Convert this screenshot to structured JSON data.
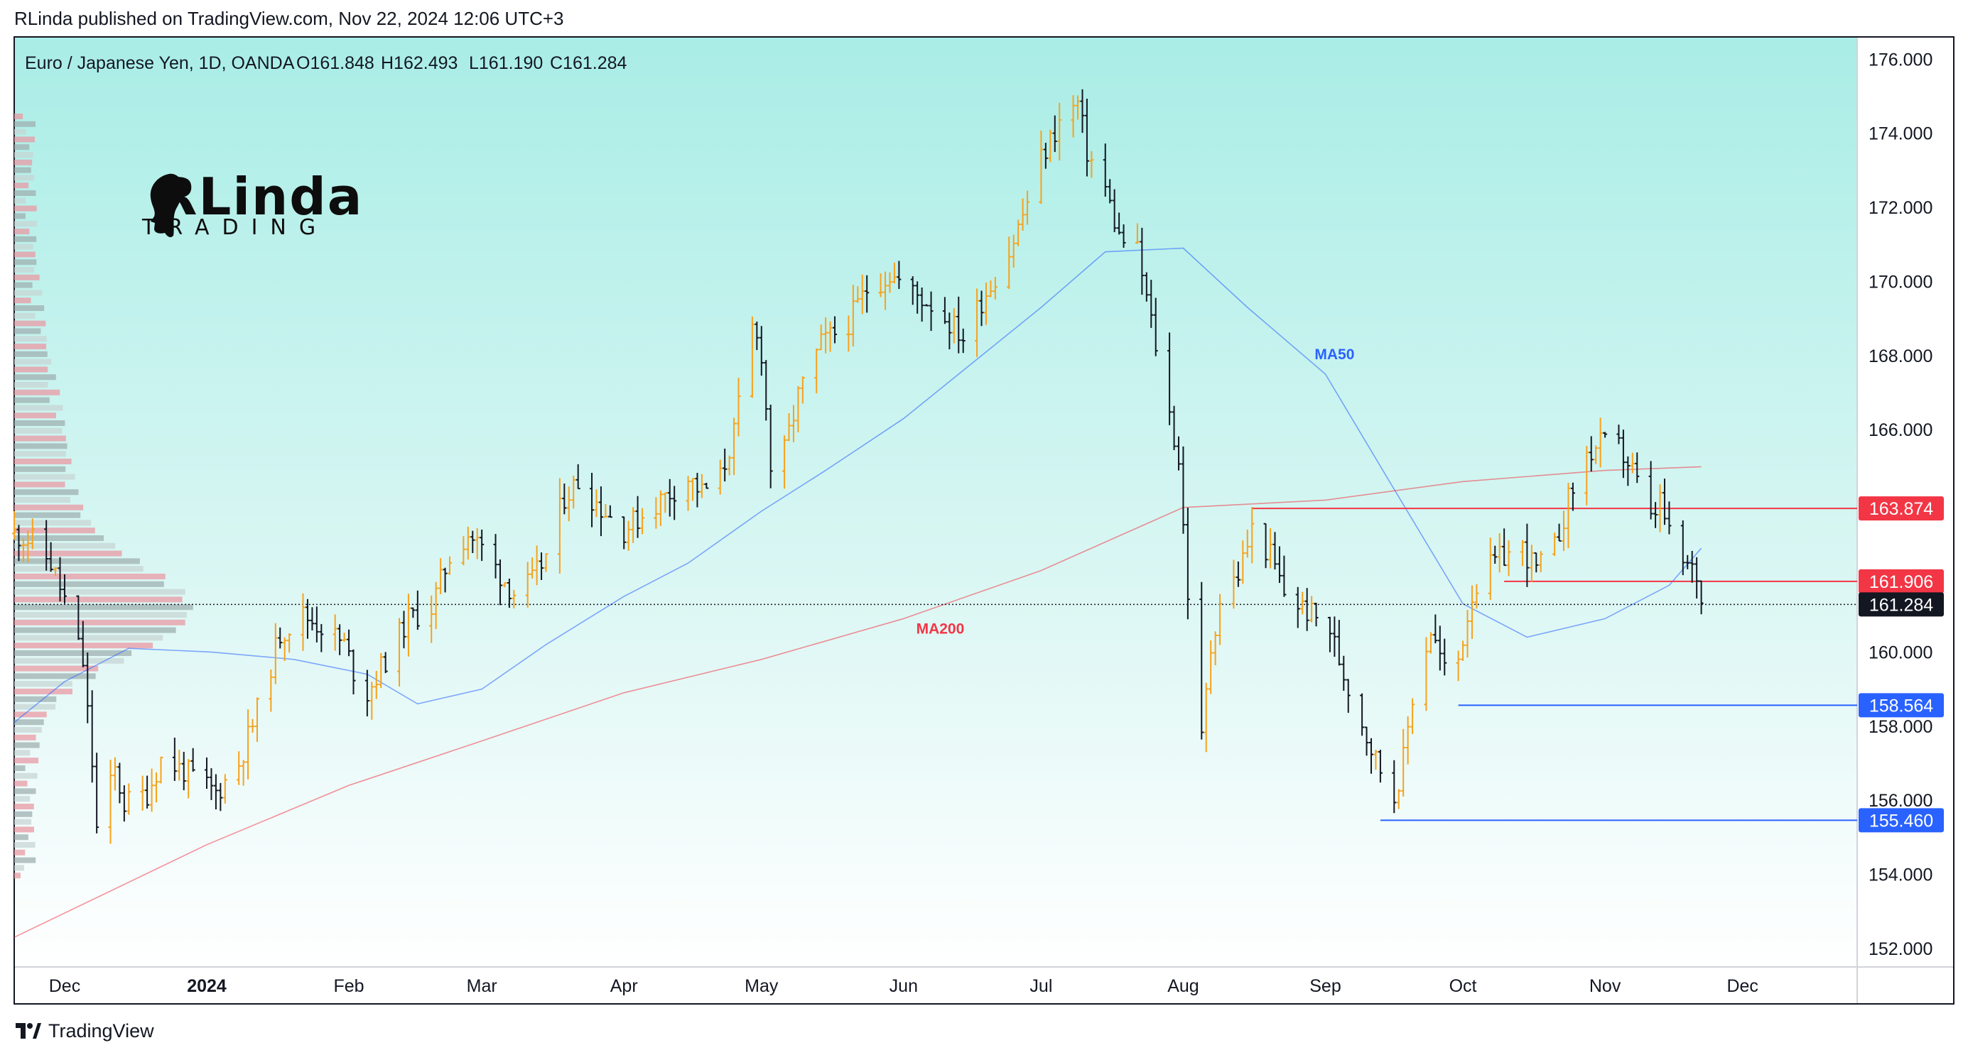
{
  "header": {
    "published_text": "RLinda published on TradingView.com, Nov 22, 2024 12:06 UTC+3"
  },
  "footer": {
    "brand": "TradingView"
  },
  "chart_data": {
    "type": "ohlc",
    "legend": {
      "symbol": "Euro / Japanese Yen, 1D, OANDA",
      "open": "O161.848",
      "high": "H162.493",
      "low": "L161.190",
      "close": "C161.284"
    },
    "watermark": {
      "top": "RLinda",
      "bottom": "TRADING"
    },
    "y_axis": {
      "min": 151.5,
      "max": 176.6,
      "ticks": [
        "176.000",
        "174.000",
        "172.000",
        "170.000",
        "168.000",
        "166.000",
        "164.000",
        "162.000",
        "160.000",
        "158.000",
        "156.000",
        "154.000",
        "152.000"
      ]
    },
    "x_axis": {
      "start_date": "2023-11-20",
      "end_date": "2024-12-26",
      "labels": [
        {
          "date": "2023-12-01",
          "text": "Dec",
          "bold": false
        },
        {
          "date": "2024-01-01",
          "text": "2024",
          "bold": true
        },
        {
          "date": "2024-02-01",
          "text": "Feb",
          "bold": false
        },
        {
          "date": "2024-03-01",
          "text": "Mar",
          "bold": false
        },
        {
          "date": "2024-04-01",
          "text": "Apr",
          "bold": false
        },
        {
          "date": "2024-05-01",
          "text": "May",
          "bold": false
        },
        {
          "date": "2024-06-01",
          "text": "Jun",
          "bold": false
        },
        {
          "date": "2024-07-01",
          "text": "Jul",
          "bold": false
        },
        {
          "date": "2024-08-01",
          "text": "Aug",
          "bold": false
        },
        {
          "date": "2024-09-01",
          "text": "Sep",
          "bold": false
        },
        {
          "date": "2024-10-01",
          "text": "Oct",
          "bold": false
        },
        {
          "date": "2024-11-01",
          "text": "Nov",
          "bold": false
        },
        {
          "date": "2024-12-01",
          "text": "Dec",
          "bold": false
        }
      ]
    },
    "price_path": [
      [
        "2023-11-20",
        163.2
      ],
      [
        "2023-11-24",
        163.0
      ],
      [
        "2023-11-28",
        162.4
      ],
      [
        "2023-12-01",
        161.4
      ],
      [
        "2023-12-05",
        159.7
      ],
      [
        "2023-12-07",
        157.0
      ],
      [
        "2023-12-08",
        155.2
      ],
      [
        "2023-12-12",
        156.8
      ],
      [
        "2023-12-14",
        155.9
      ],
      [
        "2023-12-19",
        156.2
      ],
      [
        "2023-12-22",
        157.1
      ],
      [
        "2023-12-27",
        156.8
      ],
      [
        "2024-01-03",
        156.2
      ],
      [
        "2024-01-08",
        157.0
      ],
      [
        "2024-01-12",
        158.4
      ],
      [
        "2024-01-17",
        160.5
      ],
      [
        "2024-01-22",
        161.0
      ],
      [
        "2024-01-26",
        160.7
      ],
      [
        "2024-01-31",
        160.2
      ],
      [
        "2024-02-02",
        159.5
      ],
      [
        "2024-02-05",
        158.9
      ],
      [
        "2024-02-09",
        159.8
      ],
      [
        "2024-02-14",
        160.9
      ],
      [
        "2024-02-19",
        161.2
      ],
      [
        "2024-02-23",
        162.6
      ],
      [
        "2024-02-27",
        163.2
      ],
      [
        "2024-03-01",
        162.8
      ],
      [
        "2024-03-05",
        162.1
      ],
      [
        "2024-03-08",
        161.6
      ],
      [
        "2024-03-12",
        161.9
      ],
      [
        "2024-03-15",
        162.6
      ],
      [
        "2024-03-19",
        164.2
      ],
      [
        "2024-03-22",
        164.6
      ],
      [
        "2024-03-27",
        163.9
      ],
      [
        "2024-04-01",
        163.3
      ],
      [
        "2024-04-05",
        163.7
      ],
      [
        "2024-04-10",
        164.2
      ],
      [
        "2024-04-15",
        164.7
      ],
      [
        "2024-04-18",
        164.3
      ],
      [
        "2024-04-22",
        164.7
      ],
      [
        "2024-04-25",
        165.9
      ],
      [
        "2024-04-29",
        168.7
      ],
      [
        "2024-05-01",
        168.1
      ],
      [
        "2024-05-03",
        165.0
      ],
      [
        "2024-05-06",
        165.4
      ],
      [
        "2024-05-09",
        166.9
      ],
      [
        "2024-05-14",
        168.3
      ],
      [
        "2024-05-20",
        168.9
      ],
      [
        "2024-05-24",
        169.8
      ],
      [
        "2024-05-29",
        170.2
      ],
      [
        "2024-06-03",
        169.7
      ],
      [
        "2024-06-07",
        169.4
      ],
      [
        "2024-06-11",
        168.9
      ],
      [
        "2024-06-14",
        168.5
      ],
      [
        "2024-06-18",
        169.5
      ],
      [
        "2024-06-24",
        170.8
      ],
      [
        "2024-06-27",
        171.8
      ],
      [
        "2024-07-01",
        173.3
      ],
      [
        "2024-07-05",
        174.3
      ],
      [
        "2024-07-09",
        174.8
      ],
      [
        "2024-07-11",
        173.5
      ],
      [
        "2024-07-15",
        172.5
      ],
      [
        "2024-07-18",
        171.2
      ],
      [
        "2024-07-22",
        170.8
      ],
      [
        "2024-07-25",
        168.9
      ],
      [
        "2024-07-29",
        166.4
      ],
      [
        "2024-07-31",
        165.2
      ],
      [
        "2024-08-02",
        161.6
      ],
      [
        "2024-08-05",
        157.6
      ],
      [
        "2024-08-07",
        160.1
      ],
      [
        "2024-08-09",
        161.4
      ],
      [
        "2024-08-13",
        162.1
      ],
      [
        "2024-08-16",
        163.3
      ],
      [
        "2024-08-20",
        162.6
      ],
      [
        "2024-08-23",
        161.6
      ],
      [
        "2024-08-28",
        161.1
      ],
      [
        "2024-09-02",
        160.6
      ],
      [
        "2024-09-05",
        159.4
      ],
      [
        "2024-09-09",
        158.1
      ],
      [
        "2024-09-12",
        157.1
      ],
      [
        "2024-09-16",
        156.1
      ],
      [
        "2024-09-18",
        157.1
      ],
      [
        "2024-09-20",
        158.8
      ],
      [
        "2024-09-24",
        160.6
      ],
      [
        "2024-09-27",
        159.5
      ],
      [
        "2024-09-30",
        159.8
      ],
      [
        "2024-10-03",
        161.6
      ],
      [
        "2024-10-07",
        162.3
      ],
      [
        "2024-10-10",
        162.6
      ],
      [
        "2024-10-14",
        162.8
      ],
      [
        "2024-10-17",
        162.2
      ],
      [
        "2024-10-21",
        162.8
      ],
      [
        "2024-10-24",
        164.1
      ],
      [
        "2024-10-28",
        165.3
      ],
      [
        "2024-10-31",
        165.6
      ],
      [
        "2024-11-04",
        165.5
      ],
      [
        "2024-11-07",
        164.9
      ],
      [
        "2024-11-11",
        163.5
      ],
      [
        "2024-11-13",
        164.1
      ],
      [
        "2024-11-15",
        163.1
      ],
      [
        "2024-11-18",
        162.4
      ],
      [
        "2024-11-20",
        162.2
      ],
      [
        "2024-11-21",
        162.1
      ],
      [
        "2024-11-22",
        161.3
      ]
    ],
    "ma_series": [
      {
        "name": "MA50",
        "color": "#2962ff",
        "label": "MA50",
        "label_date": "2024-09-03",
        "label_value": 167.9,
        "points": [
          [
            "2023-11-20",
            158.1
          ],
          [
            "2023-12-01",
            159.2
          ],
          [
            "2023-12-15",
            160.1
          ],
          [
            "2024-01-02",
            160.0
          ],
          [
            "2024-01-20",
            159.8
          ],
          [
            "2024-02-05",
            159.4
          ],
          [
            "2024-02-16",
            158.6
          ],
          [
            "2024-03-01",
            159.0
          ],
          [
            "2024-03-15",
            160.2
          ],
          [
            "2024-04-01",
            161.5
          ],
          [
            "2024-04-15",
            162.4
          ],
          [
            "2024-05-01",
            163.8
          ],
          [
            "2024-05-15",
            164.9
          ],
          [
            "2024-06-01",
            166.3
          ],
          [
            "2024-06-15",
            167.7
          ],
          [
            "2024-07-01",
            169.3
          ],
          [
            "2024-07-15",
            170.8
          ],
          [
            "2024-08-01",
            170.9
          ],
          [
            "2024-08-15",
            169.3
          ],
          [
            "2024-09-01",
            167.5
          ],
          [
            "2024-09-15",
            164.6
          ],
          [
            "2024-10-01",
            161.3
          ],
          [
            "2024-10-15",
            160.4
          ],
          [
            "2024-11-01",
            160.9
          ],
          [
            "2024-11-15",
            161.8
          ],
          [
            "2024-11-22",
            162.8
          ]
        ]
      },
      {
        "name": "MA200",
        "color": "#f23645",
        "label": "MA200",
        "label_date": "2024-06-09",
        "label_value": 160.5,
        "points": [
          [
            "2023-11-20",
            152.3
          ],
          [
            "2024-01-01",
            154.8
          ],
          [
            "2024-02-01",
            156.4
          ],
          [
            "2024-03-01",
            157.6
          ],
          [
            "2024-04-01",
            158.9
          ],
          [
            "2024-05-01",
            159.8
          ],
          [
            "2024-06-01",
            160.9
          ],
          [
            "2024-07-01",
            162.2
          ],
          [
            "2024-08-01",
            163.9
          ],
          [
            "2024-09-01",
            164.1
          ],
          [
            "2024-10-01",
            164.6
          ],
          [
            "2024-11-01",
            164.9
          ],
          [
            "2024-11-22",
            165.0
          ]
        ]
      }
    ],
    "levels": [
      {
        "name": "resistance-1",
        "value": 163.874,
        "label": "163.874",
        "color": "#f23645",
        "start_date": "2024-08-16"
      },
      {
        "name": "resistance-2",
        "value": 161.906,
        "label": "161.906",
        "color": "#f23645",
        "start_date": "2024-10-10"
      },
      {
        "name": "support-1",
        "value": 158.564,
        "label": "158.564",
        "color": "#2962ff",
        "start_date": "2024-09-30"
      },
      {
        "name": "support-2",
        "value": 155.46,
        "label": "155.460",
        "color": "#2962ff",
        "start_date": "2024-09-13"
      }
    ],
    "last_price": {
      "value": 161.284,
      "label": "161.284",
      "color": "#131722"
    }
  }
}
